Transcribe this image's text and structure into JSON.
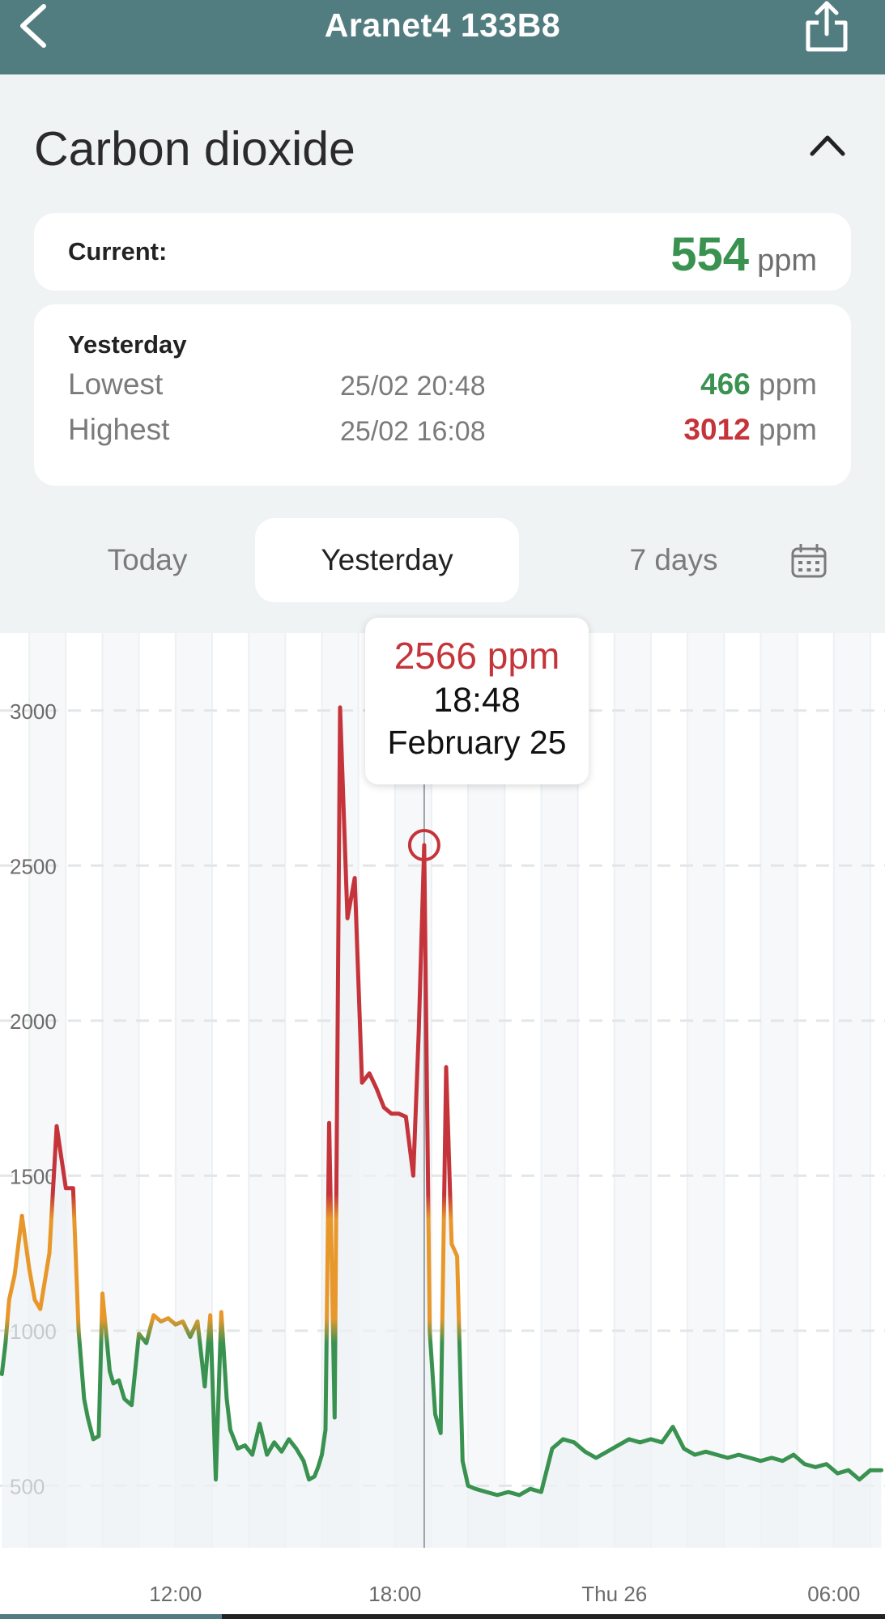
{
  "header": {
    "title": "Aranet4 133B8",
    "back_icon": "chevron-left-icon",
    "share_icon": "share-icon"
  },
  "section": {
    "title": "Carbon dioxide",
    "collapse_icon": "chevron-up-icon"
  },
  "current": {
    "label": "Current:",
    "value": "554",
    "unit": "ppm",
    "color": "#3a9250"
  },
  "stats": {
    "heading": "Yesterday",
    "lowest": {
      "label": "Lowest",
      "time": "25/02 20:48",
      "value": "466",
      "unit": "ppm",
      "color": "#3a9250"
    },
    "highest": {
      "label": "Highest",
      "time": "25/02 16:08",
      "value": "3012",
      "unit": "ppm",
      "color": "#c5343a"
    }
  },
  "tabs": {
    "today": "Today",
    "yesterday": "Yesterday",
    "week": "7 days",
    "selected": "yesterday",
    "calendar_icon": "calendar-icon"
  },
  "tooltip": {
    "value": "2566 ppm",
    "time": "18:48",
    "date": "February 25"
  },
  "colors": {
    "accent": "#527d80",
    "good": "#3a9250",
    "medium": "#e8982b",
    "bad": "#c5343a"
  },
  "chart_data": {
    "type": "line",
    "ylim": [
      300,
      3250
    ],
    "xlim": [
      7.2,
      31.4
    ],
    "yticks": [
      500,
      1000,
      1500,
      2000,
      2500,
      3000
    ],
    "xticks": [
      {
        "x": 12,
        "label": "12:00"
      },
      {
        "x": 18,
        "label": "18:00"
      },
      {
        "x": 24,
        "label": "Thu 26"
      },
      {
        "x": 30,
        "label": "06:00"
      }
    ],
    "grid": "horizontal-dashed",
    "thresholds": [
      1000,
      1400
    ],
    "selected": {
      "x": 18.8,
      "y": 2566
    },
    "series": [
      {
        "x": [
          7.25,
          7.35,
          7.45,
          7.6,
          7.8,
          8.0,
          8.15,
          8.3,
          8.55,
          8.75,
          9.0,
          9.2,
          9.35,
          9.5,
          9.6,
          9.75,
          9.9,
          10.0,
          10.2,
          10.3,
          10.45,
          10.6,
          10.8,
          11.0,
          11.2,
          11.4,
          11.6,
          11.8,
          12.0,
          12.2,
          12.4,
          12.6,
          12.8,
          12.95,
          13.1,
          13.25,
          13.4,
          13.5,
          13.7,
          13.9,
          14.1,
          14.3,
          14.5,
          14.7,
          14.9,
          15.1,
          15.3,
          15.5,
          15.65,
          15.8,
          15.9,
          16.0,
          16.1,
          16.2,
          16.35,
          16.5,
          16.7,
          16.9,
          17.1,
          17.3,
          17.5,
          17.7,
          17.9,
          18.1,
          18.3,
          18.5,
          18.65,
          18.8,
          18.95,
          19.1,
          19.25,
          19.4,
          19.55,
          19.7,
          19.85,
          20.0,
          20.2,
          20.5,
          20.8,
          21.1,
          21.4,
          21.7,
          22.0,
          22.3,
          22.6,
          22.9,
          23.2,
          23.5,
          23.8,
          24.1,
          24.4,
          24.7,
          25.0,
          25.3,
          25.6,
          25.9,
          26.2,
          26.5,
          26.8,
          27.1,
          27.4,
          27.7,
          28.0,
          28.3,
          28.6,
          28.9,
          29.2,
          29.5,
          29.8,
          30.1,
          30.4,
          30.7,
          31.0,
          31.3
        ],
        "y": [
          860,
          960,
          1100,
          1180,
          1370,
          1200,
          1100,
          1070,
          1250,
          1660,
          1460,
          1460,
          1000,
          780,
          720,
          650,
          660,
          1120,
          870,
          830,
          840,
          780,
          760,
          990,
          960,
          1050,
          1030,
          1040,
          1020,
          1030,
          980,
          1030,
          820,
          1050,
          520,
          1060,
          780,
          680,
          620,
          630,
          600,
          700,
          600,
          640,
          610,
          650,
          620,
          580,
          520,
          530,
          560,
          600,
          680,
          1670,
          720,
          3010,
          2330,
          2460,
          1800,
          1830,
          1780,
          1720,
          1700,
          1700,
          1690,
          1500,
          1960,
          2566,
          1000,
          730,
          670,
          1850,
          1280,
          1240,
          580,
          500,
          490,
          480,
          470,
          480,
          470,
          490,
          480,
          620,
          650,
          640,
          610,
          590,
          610,
          630,
          650,
          640,
          650,
          640,
          690,
          620,
          600,
          610,
          600,
          590,
          600,
          590,
          580,
          590,
          580,
          600,
          570,
          560,
          570,
          540,
          550,
          520,
          550,
          550
        ]
      }
    ]
  }
}
